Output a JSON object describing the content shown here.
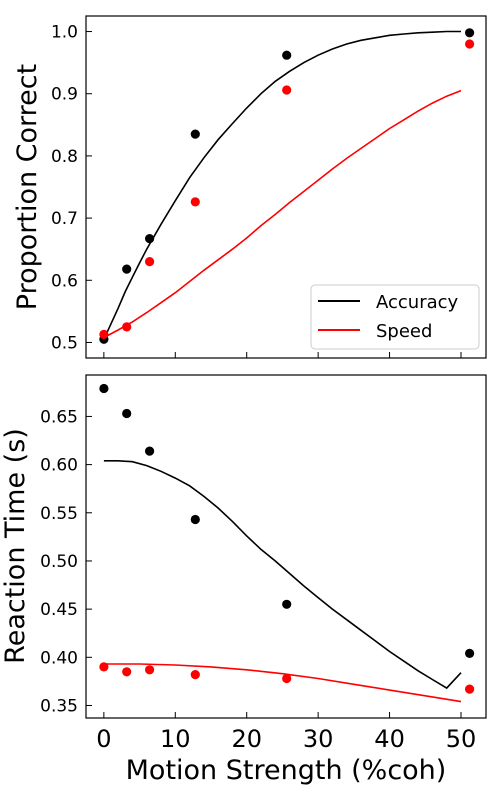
{
  "chart_data": [
    {
      "type": "line",
      "panel": "top",
      "ylabel": "Proportion Correct",
      "xlabel": "",
      "xlim": [
        -2.5,
        53.5
      ],
      "ylim": [
        0.475,
        1.025
      ],
      "xticks": [
        0,
        10,
        20,
        30,
        40,
        50
      ],
      "xtick_labels_visible": false,
      "yticks": [
        0.5,
        0.6,
        0.7,
        0.8,
        0.9,
        1.0
      ],
      "ytick_labels": [
        "0.5",
        "0.6",
        "0.7",
        "0.8",
        "0.9",
        "1.0"
      ],
      "grid": false,
      "legend_position": "lower-right",
      "legend": [
        {
          "label": "Accuracy",
          "color": "#000000"
        },
        {
          "label": "Speed",
          "color": "#ff0000"
        }
      ],
      "series": [
        {
          "name": "Accuracy",
          "color": "#000000",
          "line": {
            "x": [
              0,
              1,
              2,
              3,
              4,
              5,
              6,
              7,
              8,
              10,
              12,
              14,
              16,
              18,
              20,
              22,
              24,
              26,
              28,
              30,
              32,
              34,
              36,
              38,
              40,
              42,
              44,
              46,
              48,
              50
            ],
            "y": [
              0.505,
              0.53,
              0.555,
              0.582,
              0.605,
              0.628,
              0.65,
              0.67,
              0.69,
              0.728,
              0.765,
              0.797,
              0.826,
              0.852,
              0.877,
              0.9,
              0.92,
              0.936,
              0.95,
              0.962,
              0.972,
              0.98,
              0.986,
              0.99,
              0.994,
              0.996,
              0.998,
              0.999,
              1.0,
              1.0
            ]
          },
          "points": {
            "x": [
              0,
              3.2,
              6.4,
              12.8,
              25.6,
              51.2
            ],
            "y": [
              0.505,
              0.618,
              0.667,
              0.835,
              0.962,
              0.998
            ]
          }
        },
        {
          "name": "Speed",
          "color": "#ff0000",
          "line": {
            "x": [
              0,
              2,
              4,
              6,
              8,
              10,
              12,
              14,
              16,
              18,
              20,
              22,
              24,
              26,
              28,
              30,
              32,
              34,
              36,
              38,
              40,
              42,
              44,
              46,
              48,
              50
            ],
            "y": [
              0.508,
              0.52,
              0.533,
              0.548,
              0.564,
              0.58,
              0.598,
              0.616,
              0.633,
              0.65,
              0.668,
              0.688,
              0.706,
              0.725,
              0.743,
              0.761,
              0.779,
              0.796,
              0.812,
              0.828,
              0.844,
              0.858,
              0.872,
              0.885,
              0.896,
              0.905
            ]
          },
          "points": {
            "x": [
              0,
              3.2,
              6.4,
              12.8,
              25.6,
              51.2
            ],
            "y": [
              0.513,
              0.525,
              0.63,
              0.726,
              0.906,
              0.98
            ]
          }
        }
      ]
    },
    {
      "type": "line",
      "panel": "bottom",
      "ylabel": "Reaction Time (s)",
      "xlabel": "Motion Strength (%coh)",
      "xlim": [
        -2.5,
        53.5
      ],
      "ylim": [
        0.337,
        0.693
      ],
      "xticks": [
        0,
        10,
        20,
        30,
        40,
        50
      ],
      "xtick_labels": [
        "0",
        "10",
        "20",
        "30",
        "40",
        "50"
      ],
      "yticks": [
        0.35,
        0.4,
        0.45,
        0.5,
        0.55,
        0.6,
        0.65
      ],
      "ytick_labels": [
        "0.35",
        "0.40",
        "0.45",
        "0.50",
        "0.55",
        "0.60",
        "0.65"
      ],
      "grid": false,
      "series": [
        {
          "name": "Accuracy",
          "color": "#000000",
          "line": {
            "x": [
              0,
              2,
              4,
              6,
              8,
              10,
              12,
              14,
              16,
              18,
              20,
              22,
              24,
              26,
              28,
              30,
              32,
              34,
              36,
              38,
              40,
              42,
              44,
              46,
              48,
              50
            ],
            "y": [
              0.604,
              0.604,
              0.603,
              0.599,
              0.593,
              0.586,
              0.578,
              0.567,
              0.555,
              0.541,
              0.526,
              0.512,
              0.5,
              0.487,
              0.474,
              0.462,
              0.45,
              0.439,
              0.428,
              0.417,
              0.406,
              0.396,
              0.386,
              0.377,
              0.368,
              0.384
            ]
          },
          "points": {
            "x": [
              0,
              3.2,
              6.4,
              12.8,
              25.6,
              51.2
            ],
            "y": [
              0.679,
              0.653,
              0.614,
              0.543,
              0.455,
              0.404
            ]
          }
        },
        {
          "name": "Speed",
          "color": "#ff0000",
          "line": {
            "x": [
              0,
              5,
              10,
              15,
              20,
              25,
              30,
              35,
              40,
              45,
              50
            ],
            "y": [
              0.393,
              0.393,
              0.392,
              0.39,
              0.387,
              0.383,
              0.378,
              0.372,
              0.366,
              0.36,
              0.354
            ]
          },
          "points": {
            "x": [
              0,
              3.2,
              6.4,
              12.8,
              25.6,
              51.2
            ],
            "y": [
              0.39,
              0.385,
              0.387,
              0.382,
              0.378,
              0.367
            ]
          }
        }
      ]
    }
  ]
}
